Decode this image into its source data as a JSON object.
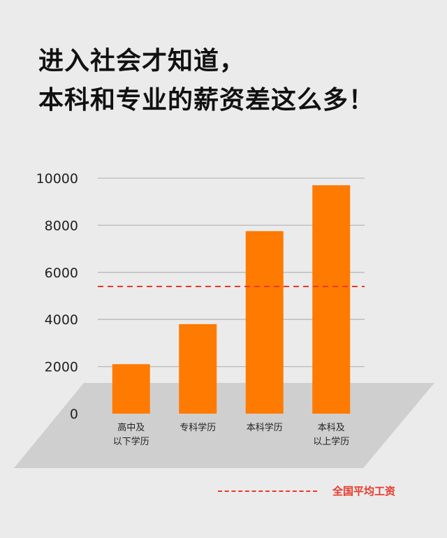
{
  "header": {
    "title_line1": "进入社会才知道，",
    "title_line2": "本科和专业的薪资差这么多！"
  },
  "colors": {
    "bar": "#ff7a00",
    "average_line": "#e8392a",
    "floor": "#cfcfcf",
    "grid": "#b9b9b9",
    "background": "#ebebeb"
  },
  "chart_data": {
    "type": "bar",
    "categories": [
      [
        "高中及",
        "以下学历"
      ],
      [
        "专科学历"
      ],
      [
        "本科学历"
      ],
      [
        "本科及",
        "以上学历"
      ]
    ],
    "values": [
      2100,
      3800,
      7750,
      9700
    ],
    "ylim": [
      0,
      10000
    ],
    "yticks": [
      0,
      2000,
      4000,
      6000,
      8000,
      10000
    ],
    "grid": true,
    "reference_line": {
      "label": "全国平均工资",
      "value": 5400
    },
    "legend": "bottom-right"
  },
  "legend": {
    "label": "全国平均工资"
  }
}
